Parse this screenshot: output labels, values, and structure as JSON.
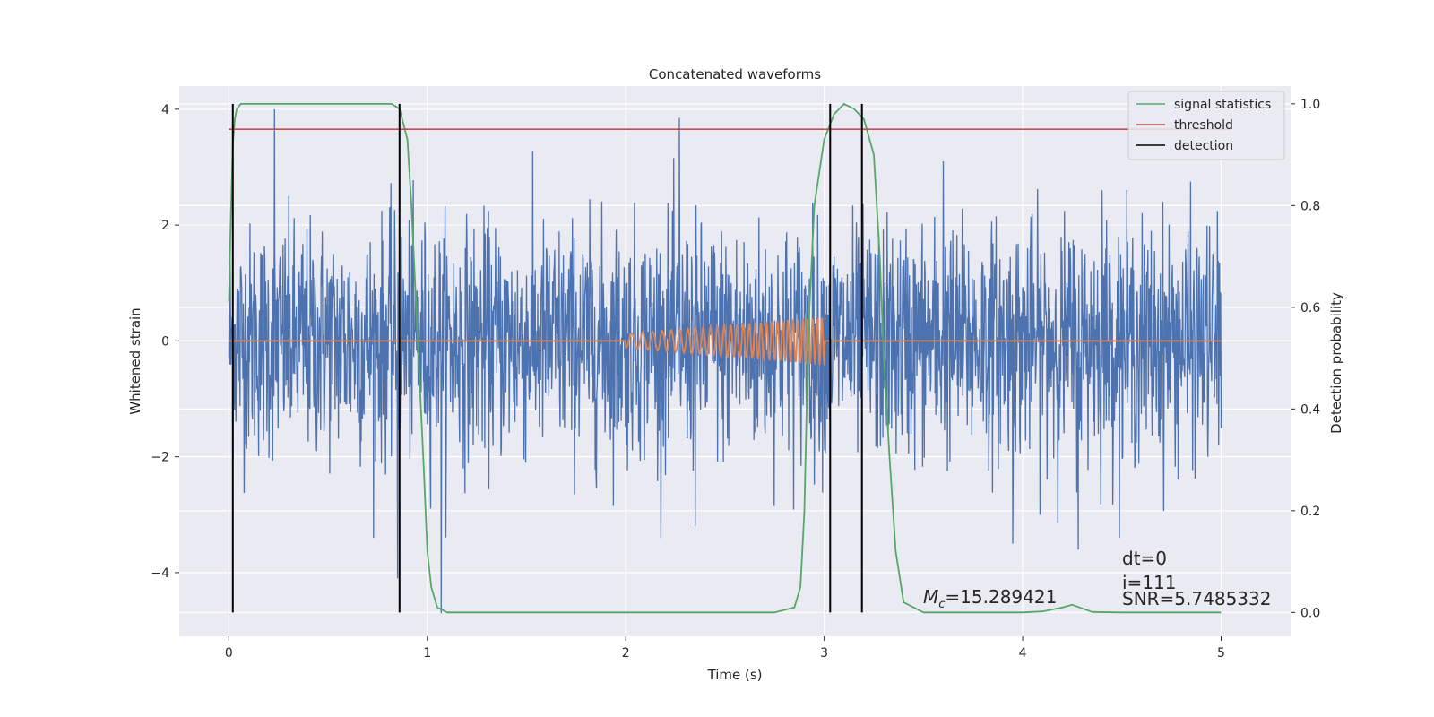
{
  "chart_data": {
    "type": "line",
    "title": "Concatenated waveforms",
    "xlabel": "Time (s)",
    "ylabel": "Whitened strain",
    "y2label": "Detection probability",
    "xlim": [
      -0.25,
      5.35
    ],
    "ylim": [
      -5.1,
      4.4
    ],
    "y2lim": [
      -0.047,
      1.035
    ],
    "xticks": [
      0,
      1,
      2,
      3,
      4,
      5
    ],
    "yticks": [
      -4,
      -2,
      0,
      2,
      4
    ],
    "y2ticks": [
      0.0,
      0.2,
      0.4,
      0.6,
      0.8,
      1.0
    ],
    "xtick_labels": [
      "0",
      "1",
      "2",
      "3",
      "4",
      "5"
    ],
    "ytick_labels": [
      "−4",
      "−2",
      "0",
      "2",
      "4"
    ],
    "y2tick_labels": [
      "0.0",
      "0.2",
      "0.4",
      "0.6",
      "0.8",
      "1.0"
    ],
    "grid": true,
    "legend_position": "top-right",
    "colors": {
      "strain": "#4c72b0",
      "waveform": "#dd8452",
      "signal_statistics": "#55a868",
      "threshold": "#c44e52",
      "detection": "#000000",
      "axes_background": "#eaeaf2",
      "grid": "#ffffff"
    },
    "series": [
      {
        "name": "",
        "axis": "left",
        "kind": "noise",
        "x_range": [
          0,
          5
        ],
        "amplitude_typical": 1.0,
        "amplitude_peak": 4.0,
        "notable_extrema": [
          {
            "x": 0.23,
            "y": 4.0
          },
          {
            "x": 1.07,
            "y": -4.7
          },
          {
            "x": 0.85,
            "y": -4.1
          },
          {
            "x": 2.27,
            "y": 3.85
          },
          {
            "x": 2.35,
            "y": -3.2
          },
          {
            "x": 3.6,
            "y": 3.1
          },
          {
            "x": 3.95,
            "y": -3.5
          },
          {
            "x": 4.28,
            "y": -3.6
          },
          {
            "x": 4.4,
            "y": 2.6
          }
        ]
      },
      {
        "name": "",
        "axis": "left",
        "kind": "chirp",
        "x_range": [
          0,
          5
        ],
        "chirp_start": 2.0,
        "chirp_end": 3.0,
        "amplitude_start": 0.12,
        "amplitude_end": 0.42,
        "cycles": 30
      },
      {
        "name": "signal statistics",
        "axis": "right",
        "x": [
          0,
          0.01,
          0.02,
          0.03,
          0.04,
          0.06,
          0.1,
          0.3,
          0.6,
          0.78,
          0.82,
          0.86,
          0.9,
          0.92,
          0.95,
          0.98,
          1.0,
          1.02,
          1.05,
          1.1,
          1.5,
          2.0,
          2.5,
          2.75,
          2.85,
          2.88,
          2.9,
          2.92,
          2.95,
          3.0,
          3.05,
          3.1,
          3.15,
          3.2,
          3.25,
          3.28,
          3.3,
          3.33,
          3.36,
          3.4,
          3.5,
          4.0,
          4.1,
          4.2,
          4.25,
          4.3,
          4.35,
          4.5,
          5.0
        ],
        "y": [
          0.61,
          0.78,
          0.92,
          0.97,
          0.99,
          1.0,
          1.0,
          1.0,
          1.0,
          1.0,
          1.0,
          0.99,
          0.93,
          0.8,
          0.55,
          0.3,
          0.12,
          0.05,
          0.01,
          0.0,
          0.0,
          0.0,
          0.0,
          0.0,
          0.01,
          0.05,
          0.2,
          0.55,
          0.8,
          0.93,
          0.98,
          1.0,
          0.99,
          0.97,
          0.9,
          0.7,
          0.5,
          0.3,
          0.12,
          0.02,
          0.0,
          0.0,
          0.002,
          0.01,
          0.015,
          0.008,
          0.001,
          0.0,
          0.0
        ]
      },
      {
        "name": "threshold",
        "axis": "right",
        "x": [
          0,
          5.05
        ],
        "y": [
          0.95,
          0.95
        ]
      },
      {
        "name": "detection",
        "axis": "right",
        "vlines": [
          0.02,
          0.86,
          3.03,
          3.19
        ],
        "y": [
          0.0,
          1.0
        ]
      }
    ],
    "legend": [
      "signal statistics",
      "threshold",
      "detection"
    ],
    "annotations": {
      "dt": "dt=0",
      "i": "i=111",
      "mc_label": "M",
      "mc_sub": "c",
      "mc_value": "=15.289421",
      "snr": "SNR=5.7485332"
    }
  }
}
